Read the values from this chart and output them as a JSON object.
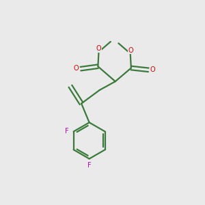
{
  "bg_color": "#EAEAEA",
  "bond_color": "#3a7a3a",
  "o_color": "#dd0000",
  "f_color": "#bb00bb",
  "lw": 1.6,
  "fs": 7.0,
  "fig_w": 3.0,
  "fig_h": 3.0,
  "dpi": 100,
  "xlim": [
    -1,
    9
  ],
  "ylim": [
    -0.5,
    9.5
  ]
}
